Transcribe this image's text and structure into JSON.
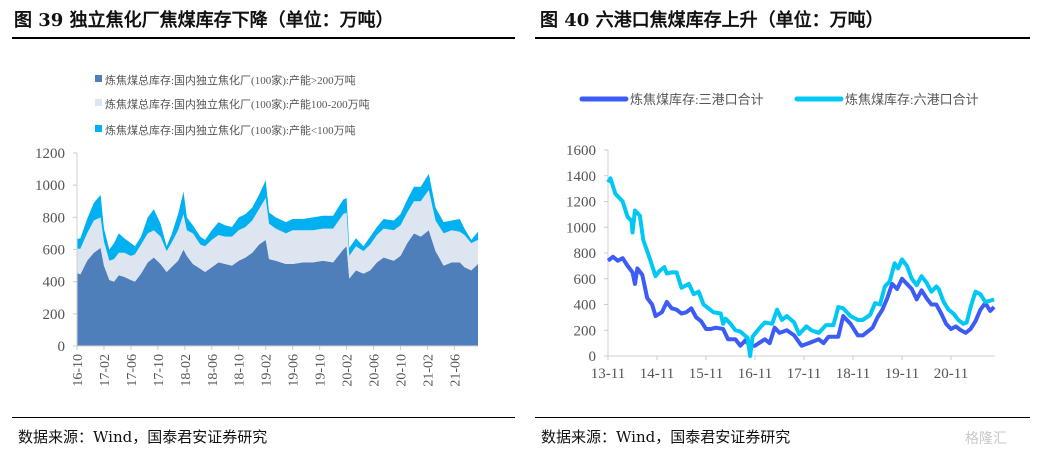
{
  "left": {
    "title": "图 39  独立焦化厂焦煤库存下降（单位：万吨）",
    "source": "数据来源：Wind，国泰君安证券研究"
  },
  "right": {
    "title": "图 40  六港口焦煤库存上升（单位：万吨）",
    "source": "数据来源：Wind，国泰君安证券研究"
  },
  "watermark": "格隆汇",
  "chart_data": [
    {
      "type": "area",
      "stacked": true,
      "x_unit": "months since 2016-10",
      "ylim": [
        0,
        1200
      ],
      "yticks": [
        0,
        200,
        400,
        600,
        800,
        1000,
        1200
      ],
      "xticks": [
        "16-10",
        "17-02",
        "17-06",
        "17-10",
        "18-02",
        "18-06",
        "18-10",
        "19-02",
        "19-06",
        "19-10",
        "20-02",
        "20-06",
        "20-10",
        "21-02",
        "21-06"
      ],
      "legend_position": "top",
      "x": [
        0,
        0.5,
        1.5,
        2.5,
        3.5,
        4,
        4.8,
        5.5,
        6.2,
        7,
        8,
        8.6,
        9.5,
        10.5,
        11.4,
        12.4,
        13.3,
        14,
        15,
        15.8,
        16.3,
        17.2,
        18.3,
        19,
        20,
        21,
        22,
        23,
        24,
        25,
        26,
        27,
        28,
        28.5,
        29.5,
        31,
        32,
        33.5,
        35,
        36.5,
        38,
        39.5,
        40,
        40.4,
        41.4,
        42.5,
        43.5,
        44.5,
        45.5,
        47,
        48,
        49,
        50,
        51,
        52.2,
        53.2,
        54.4,
        55.6,
        56.8,
        57.5,
        58.5,
        59.5
      ],
      "series": [
        {
          "name": "炼焦煤总库存:国内独立焦化厂(100家):产能>200万吨",
          "color": "#4f7fba",
          "values": [
            455,
            445,
            530,
            580,
            610,
            500,
            410,
            400,
            440,
            430,
            410,
            400,
            450,
            520,
            550,
            510,
            460,
            490,
            530,
            600,
            560,
            510,
            480,
            460,
            490,
            520,
            510,
            500,
            530,
            550,
            580,
            630,
            660,
            540,
            530,
            510,
            510,
            520,
            520,
            530,
            520,
            600,
            620,
            420,
            470,
            450,
            470,
            520,
            550,
            530,
            560,
            640,
            700,
            680,
            720,
            590,
            500,
            520,
            520,
            490,
            470,
            510
          ]
        },
        {
          "name": "炼焦煤总库存:国内独立焦化厂(100家):产能100-200万吨",
          "color": "#dde5f1",
          "values": [
            150,
            160,
            170,
            200,
            190,
            150,
            120,
            140,
            140,
            150,
            150,
            170,
            180,
            180,
            170,
            170,
            130,
            150,
            190,
            220,
            160,
            190,
            150,
            160,
            170,
            170,
            170,
            180,
            190,
            190,
            200,
            220,
            260,
            220,
            200,
            190,
            210,
            200,
            200,
            200,
            210,
            220,
            210,
            140,
            150,
            140,
            160,
            170,
            180,
            190,
            190,
            190,
            200,
            220,
            250,
            190,
            200,
            200,
            190,
            200,
            170,
            150
          ]
        },
        {
          "name": "炼焦煤总库存:国内独立焦化厂(100家):产能<100万吨",
          "color": "#00b0f0",
          "values": [
            60,
            65,
            90,
            110,
            140,
            80,
            70,
            100,
            120,
            90,
            80,
            50,
            50,
            100,
            130,
            80,
            30,
            50,
            100,
            140,
            80,
            50,
            50,
            40,
            60,
            80,
            70,
            60,
            80,
            80,
            80,
            90,
            110,
            70,
            70,
            70,
            70,
            70,
            80,
            80,
            80,
            90,
            90,
            50,
            50,
            30,
            50,
            50,
            60,
            60,
            70,
            80,
            90,
            90,
            100,
            80,
            70,
            60,
            80,
            40,
            20,
            50
          ]
        }
      ]
    },
    {
      "type": "line",
      "x_unit": "years since 2013-11",
      "ylim": [
        0,
        1600
      ],
      "yticks": [
        0,
        200,
        400,
        600,
        800,
        1000,
        1200,
        1400,
        1600
      ],
      "xticks": [
        "13-11",
        "14-11",
        "15-11",
        "16-11",
        "17-11",
        "18-11",
        "19-11",
        "20-11"
      ],
      "legend_position": "top",
      "series": [
        {
          "name": "炼焦煤库存:三港口合计",
          "color": "#3d5cf5",
          "x": [
            0,
            0.1,
            0.2,
            0.3,
            0.4,
            0.5,
            0.55,
            0.6,
            0.7,
            0.8,
            0.9,
            0.97,
            1.1,
            1.2,
            1.3,
            1.4,
            1.5,
            1.6,
            1.7,
            1.8,
            1.9,
            2.0,
            2.1,
            2.2,
            2.35,
            2.45,
            2.6,
            2.7,
            2.8,
            2.9,
            3.0,
            3.2,
            3.3,
            3.4,
            3.5,
            3.65,
            3.8,
            3.95,
            4.1,
            4.3,
            4.4,
            4.5,
            4.7,
            4.8,
            4.95,
            5.1,
            5.2,
            5.4,
            5.5,
            5.6,
            5.7,
            5.8,
            5.9,
            6.0,
            6.1,
            6.2,
            6.3,
            6.4,
            6.5,
            6.6,
            6.7,
            6.8,
            6.9,
            7.0,
            7.1,
            7.2,
            7.3,
            7.4,
            7.5,
            7.6,
            7.7,
            7.8,
            7.88
          ],
          "values": [
            740,
            770,
            740,
            760,
            700,
            650,
            560,
            680,
            630,
            450,
            400,
            310,
            340,
            420,
            370,
            360,
            330,
            340,
            370,
            300,
            270,
            210,
            210,
            220,
            210,
            130,
            130,
            80,
            120,
            80,
            80,
            130,
            100,
            220,
            180,
            200,
            160,
            80,
            100,
            130,
            100,
            150,
            150,
            310,
            250,
            160,
            160,
            220,
            300,
            360,
            450,
            560,
            520,
            600,
            560,
            520,
            440,
            510,
            450,
            400,
            400,
            330,
            250,
            210,
            230,
            200,
            180,
            210,
            270,
            360,
            410,
            350,
            380
          ]
        },
        {
          "name": "炼焦煤库存:六港口合计",
          "color": "#00c8f5",
          "x": [
            0,
            0.05,
            0.15,
            0.3,
            0.4,
            0.48,
            0.5,
            0.55,
            0.65,
            0.72,
            0.85,
            0.97,
            1.05,
            1.15,
            1.2,
            1.3,
            1.4,
            1.5,
            1.65,
            1.75,
            1.85,
            1.95,
            2.05,
            2.15,
            2.3,
            2.35,
            2.4,
            2.5,
            2.6,
            2.7,
            2.85,
            2.9,
            2.95,
            3.1,
            3.2,
            3.35,
            3.45,
            3.55,
            3.65,
            3.8,
            3.9,
            4.05,
            4.15,
            4.3,
            4.45,
            4.6,
            4.7,
            4.8,
            4.95,
            5.1,
            5.2,
            5.35,
            5.45,
            5.55,
            5.65,
            5.75,
            5.85,
            5.92,
            6.0,
            6.1,
            6.2,
            6.3,
            6.4,
            6.5,
            6.6,
            6.7,
            6.75,
            6.85,
            6.95,
            7.05,
            7.15,
            7.25,
            7.32,
            7.4,
            7.5,
            7.6,
            7.7,
            7.8,
            7.88
          ],
          "values": [
            1350,
            1380,
            1260,
            1200,
            1080,
            1050,
            960,
            1130,
            1090,
            900,
            760,
            620,
            660,
            690,
            640,
            650,
            650,
            530,
            560,
            480,
            500,
            400,
            370,
            340,
            330,
            250,
            290,
            250,
            200,
            190,
            140,
            0,
            150,
            220,
            260,
            250,
            360,
            280,
            310,
            260,
            170,
            230,
            200,
            180,
            240,
            240,
            380,
            370,
            310,
            280,
            280,
            320,
            410,
            400,
            540,
            580,
            720,
            680,
            750,
            700,
            600,
            550,
            620,
            570,
            500,
            540,
            520,
            420,
            360,
            330,
            280,
            250,
            260,
            380,
            500,
            480,
            420,
            430,
            440
          ]
        }
      ]
    }
  ]
}
